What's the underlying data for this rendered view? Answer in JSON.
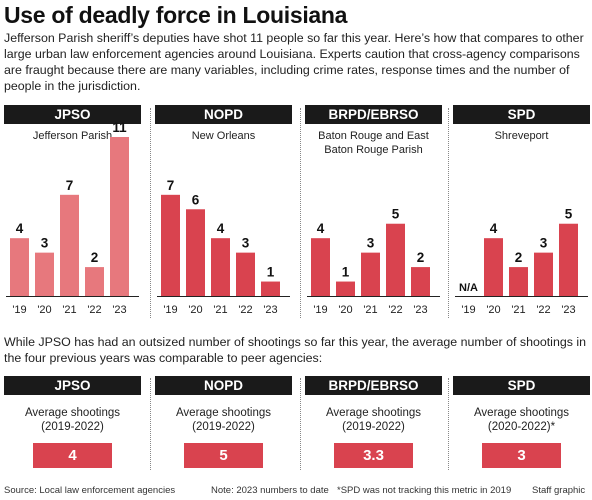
{
  "title": "Use of deadly force in Louisiana",
  "intro": "Jefferson Parish sheriff’s deputies have shot 11 people so far this year. Here’s how that compares to other large urban law enforcement agencies around Louisiana. Experts caution that cross-agency comparisons are fraught because there are many variables, including crime rates, response times and the number of people in the jurisdiction.",
  "colors": {
    "jpso_bar": "#e7787d",
    "bar": "#d9434f",
    "header_bg": "#1a1a1a"
  },
  "chart_data": [
    {
      "type": "bar",
      "title": "JPSO",
      "subtitle": "Jefferson Parish",
      "categories": [
        "'19",
        "'20",
        "'21",
        "'22",
        "'23"
      ],
      "values": [
        4,
        3,
        7,
        2,
        11
      ],
      "labels": [
        "4",
        "3",
        "7",
        "2",
        "11"
      ],
      "ylim": [
        0,
        11
      ]
    },
    {
      "type": "bar",
      "title": "NOPD",
      "subtitle": "New Orleans",
      "categories": [
        "'19",
        "'20",
        "'21",
        "'22",
        "'23"
      ],
      "values": [
        7,
        6,
        4,
        3,
        1
      ],
      "labels": [
        "7",
        "6",
        "4",
        "3",
        "1"
      ],
      "ylim": [
        0,
        11
      ]
    },
    {
      "type": "bar",
      "title": "BRPD/EBRSO",
      "subtitle": "Baton Rouge and East Baton Rouge Parish",
      "categories": [
        "'19",
        "'20",
        "'21",
        "'22",
        "'23"
      ],
      "values": [
        4,
        1,
        3,
        5,
        2
      ],
      "labels": [
        "4",
        "1",
        "3",
        "5",
        "2"
      ],
      "ylim": [
        0,
        11
      ]
    },
    {
      "type": "bar",
      "title": "SPD",
      "subtitle": "Shreveport",
      "categories": [
        "'19",
        "'20",
        "'21",
        "'22",
        "'23"
      ],
      "values": [
        null,
        4,
        2,
        3,
        5
      ],
      "labels": [
        "N/A",
        "4",
        "2",
        "3",
        "5"
      ],
      "ylim": [
        0,
        11
      ]
    }
  ],
  "middle_text": "While JPSO has had an outsized number of shootings so far this year, the average number of shootings in the four previous years was comparable to peer agencies:",
  "averages": [
    {
      "agency": "JPSO",
      "label_line1": "Average shootings",
      "label_line2": "(2019-2022)",
      "value": "4"
    },
    {
      "agency": "NOPD",
      "label_line1": "Average shootings",
      "label_line2": "(2019-2022)",
      "value": "5"
    },
    {
      "agency": "BRPD/EBRSO",
      "label_line1": "Average shootings",
      "label_line2": "(2019-2022)",
      "value": "3.3"
    },
    {
      "agency": "SPD",
      "label_line1": "Average shootings",
      "label_line2": "(2020-2022)*",
      "value": "3"
    }
  ],
  "footer": {
    "source": "Source: Local law enforcement agencies",
    "note": "Note: 2023 numbers to date",
    "footnote": "*SPD was not tracking this metric in 2019",
    "credit": "Staff graphic"
  }
}
